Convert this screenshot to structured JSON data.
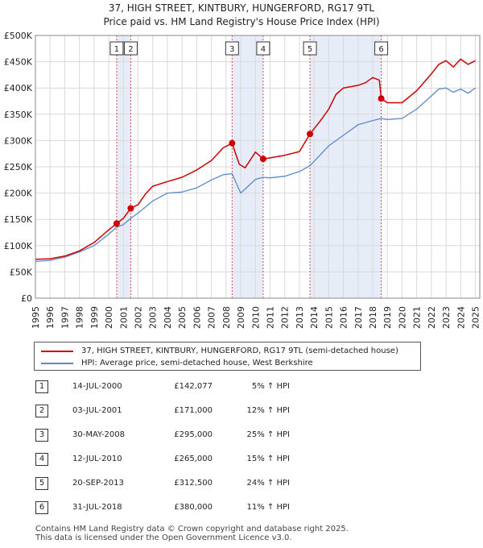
{
  "header": {
    "title": "37, HIGH STREET, KINTBURY, HUNGERFORD, RG17 9TL",
    "subtitle": "Price paid vs. HM Land Registry's House Price Index (HPI)"
  },
  "colors": {
    "property_line": "#cc0000",
    "hpi_line": "#5b8ac9",
    "shade": "#dde6f5",
    "marker": "#cc0000"
  },
  "legend": {
    "property_label": "37, HIGH STREET, KINTBURY, HUNGERFORD, RG17 9TL (semi-detached house)",
    "hpi_label": "HPI: Average price, semi-detached house, West Berkshire"
  },
  "sales": [
    {
      "num": "1",
      "date": "14-JUL-2000",
      "price": "£142,077",
      "hpi": "5% ↑ HPI"
    },
    {
      "num": "2",
      "date": "03-JUL-2001",
      "price": "£171,000",
      "hpi": "12% ↑ HPI"
    },
    {
      "num": "3",
      "date": "30-MAY-2008",
      "price": "£295,000",
      "hpi": "25% ↑ HPI"
    },
    {
      "num": "4",
      "date": "12-JUL-2010",
      "price": "£265,000",
      "hpi": "15% ↑ HPI"
    },
    {
      "num": "5",
      "date": "20-SEP-2013",
      "price": "£312,500",
      "hpi": "24% ↑ HPI"
    },
    {
      "num": "6",
      "date": "31-JUL-2018",
      "price": "£380,000",
      "hpi": "11% ↑ HPI"
    }
  ],
  "footer": {
    "line1": "Contains HM Land Registry data © Crown copyright and database right 2025.",
    "line2": "This data is licensed under the Open Government Licence v3.0."
  },
  "chart_data": {
    "type": "line",
    "title": "37, HIGH STREET, KINTBURY, HUNGERFORD, RG17 9TL",
    "subtitle": "Price paid vs. HM Land Registry's House Price Index (HPI)",
    "xlim": [
      1995,
      2025.3
    ],
    "ylim": [
      0,
      500000
    ],
    "x_ticks": [
      "1995",
      "1996",
      "1997",
      "1998",
      "1999",
      "2000",
      "2001",
      "2002",
      "2003",
      "2004",
      "2005",
      "2006",
      "2007",
      "2008",
      "2009",
      "2010",
      "2011",
      "2012",
      "2013",
      "2014",
      "2015",
      "2016",
      "2017",
      "2018",
      "2019",
      "2020",
      "2021",
      "2022",
      "2023",
      "2024",
      "2025"
    ],
    "y_ticks": [
      {
        "value": 0,
        "label": "£0"
      },
      {
        "value": 50000,
        "label": "£50K"
      },
      {
        "value": 100000,
        "label": "£100K"
      },
      {
        "value": 150000,
        "label": "£150K"
      },
      {
        "value": 200000,
        "label": "£200K"
      },
      {
        "value": 250000,
        "label": "£250K"
      },
      {
        "value": 300000,
        "label": "£300K"
      },
      {
        "value": 350000,
        "label": "£350K"
      },
      {
        "value": 400000,
        "label": "£400K"
      },
      {
        "value": 450000,
        "label": "£450K"
      },
      {
        "value": 500000,
        "label": "£500K"
      }
    ],
    "grid": true,
    "legend_position": "below",
    "shaded_spans": [
      [
        2000.54,
        2001.5
      ],
      [
        2008.41,
        2010.53
      ],
      [
        2013.72,
        2018.58
      ]
    ],
    "series": [
      {
        "name": "37, HIGH STREET, KINTBURY, HUNGERFORD, RG17 9TL (semi-detached house)",
        "points": [
          [
            1995.0,
            74000
          ],
          [
            1996.0,
            75000
          ],
          [
            1997.0,
            80000
          ],
          [
            1998.0,
            90000
          ],
          [
            1999.0,
            106000
          ],
          [
            2000.0,
            130000
          ],
          [
            2000.54,
            142077
          ],
          [
            2001.0,
            152000
          ],
          [
            2001.5,
            171000
          ],
          [
            2002.0,
            178000
          ],
          [
            2002.5,
            198000
          ],
          [
            2003.0,
            213000
          ],
          [
            2004.0,
            222000
          ],
          [
            2005.0,
            230000
          ],
          [
            2006.0,
            244000
          ],
          [
            2007.0,
            262000
          ],
          [
            2007.8,
            286000
          ],
          [
            2008.41,
            295000
          ],
          [
            2008.9,
            255000
          ],
          [
            2009.3,
            248000
          ],
          [
            2010.0,
            278000
          ],
          [
            2010.53,
            265000
          ],
          [
            2011.0,
            267000
          ],
          [
            2012.0,
            272000
          ],
          [
            2013.0,
            279000
          ],
          [
            2013.72,
            312500
          ],
          [
            2014.5,
            340000
          ],
          [
            2015.0,
            360000
          ],
          [
            2015.5,
            388000
          ],
          [
            2016.0,
            400000
          ],
          [
            2017.0,
            405000
          ],
          [
            2017.5,
            410000
          ],
          [
            2018.0,
            420000
          ],
          [
            2018.45,
            415000
          ],
          [
            2018.58,
            380000
          ],
          [
            2019.0,
            372000
          ],
          [
            2020.0,
            372000
          ],
          [
            2021.0,
            395000
          ],
          [
            2022.0,
            427000
          ],
          [
            2022.5,
            445000
          ],
          [
            2023.0,
            452000
          ],
          [
            2023.5,
            440000
          ],
          [
            2024.0,
            455000
          ],
          [
            2024.5,
            445000
          ],
          [
            2025.0,
            452000
          ]
        ]
      },
      {
        "name": "HPI: Average price, semi-detached house, West Berkshire",
        "points": [
          [
            1995.0,
            70000
          ],
          [
            1996.0,
            72000
          ],
          [
            1997.0,
            78000
          ],
          [
            1998.0,
            88000
          ],
          [
            1999.0,
            100000
          ],
          [
            2000.0,
            122000
          ],
          [
            2000.54,
            135000
          ],
          [
            2001.0,
            140000
          ],
          [
            2001.5,
            152000
          ],
          [
            2002.0,
            162000
          ],
          [
            2003.0,
            185000
          ],
          [
            2004.0,
            200000
          ],
          [
            2005.0,
            202000
          ],
          [
            2006.0,
            210000
          ],
          [
            2007.0,
            225000
          ],
          [
            2007.8,
            235000
          ],
          [
            2008.41,
            237000
          ],
          [
            2009.0,
            200000
          ],
          [
            2010.0,
            226000
          ],
          [
            2010.53,
            230000
          ],
          [
            2011.0,
            229000
          ],
          [
            2012.0,
            232000
          ],
          [
            2013.0,
            241000
          ],
          [
            2013.72,
            252000
          ],
          [
            2014.5,
            275000
          ],
          [
            2015.0,
            290000
          ],
          [
            2016.0,
            310000
          ],
          [
            2017.0,
            330000
          ],
          [
            2018.0,
            338000
          ],
          [
            2018.58,
            342000
          ],
          [
            2019.0,
            340000
          ],
          [
            2020.0,
            342000
          ],
          [
            2021.0,
            360000
          ],
          [
            2022.0,
            385000
          ],
          [
            2022.5,
            398000
          ],
          [
            2023.0,
            400000
          ],
          [
            2023.5,
            392000
          ],
          [
            2024.0,
            398000
          ],
          [
            2024.5,
            390000
          ],
          [
            2025.0,
            400000
          ]
        ]
      }
    ],
    "sale_markers": [
      {
        "label": "1",
        "x": 2000.54,
        "y": 142077
      },
      {
        "label": "2",
        "x": 2001.5,
        "y": 171000
      },
      {
        "label": "3",
        "x": 2008.41,
        "y": 295000
      },
      {
        "label": "4",
        "x": 2010.53,
        "y": 265000
      },
      {
        "label": "5",
        "x": 2013.72,
        "y": 312500
      },
      {
        "label": "6",
        "x": 2018.58,
        "y": 380000
      }
    ]
  }
}
